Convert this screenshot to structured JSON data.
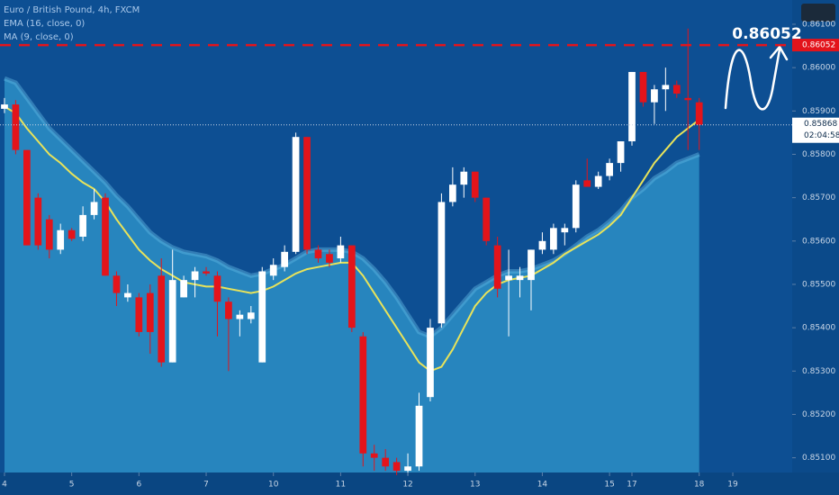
{
  "chart_data": {
    "type": "candlestick",
    "title": "Euro / British Pound, 4h, FXCM",
    "up_color": "#ffffff",
    "down_color": "#e3141b",
    "open": [
      0.85905,
      0.85915,
      0.8581,
      0.857,
      0.8565,
      0.8558,
      0.85625,
      0.8561,
      0.8566,
      0.857,
      0.8552,
      0.8547,
      0.8547,
      0.8548,
      0.8552,
      0.8532,
      0.8547,
      0.8551,
      0.8553,
      0.8552,
      0.8546,
      0.8542,
      0.8542,
      0.8532,
      0.8552,
      0.8554,
      0.85575,
      0.8584,
      0.8558,
      0.8557,
      0.8556,
      0.8559,
      0.8538,
      0.8511,
      0.851,
      0.8509,
      0.8507,
      0.8508,
      0.8524,
      0.8541,
      0.8569,
      0.8573,
      0.8576,
      0.857,
      0.8559,
      0.8551,
      0.8551,
      0.8551,
      0.8558,
      0.8558,
      0.8562,
      0.8563,
      0.8574,
      0.85725,
      0.8575,
      0.8578,
      0.8583,
      0.8599,
      0.8592,
      0.8595,
      0.8596,
      0.8593,
      0.8592
    ],
    "high": [
      0.8593,
      0.85925,
      0.8581,
      0.8571,
      0.8566,
      0.8564,
      0.8563,
      0.8568,
      0.8572,
      0.8571,
      0.8553,
      0.855,
      0.8548,
      0.855,
      0.8556,
      0.8558,
      0.8552,
      0.8554,
      0.8554,
      0.8553,
      0.8547,
      0.8544,
      0.8545,
      0.8554,
      0.8556,
      0.8559,
      0.8585,
      0.8584,
      0.8559,
      0.8558,
      0.8561,
      0.8559,
      0.8539,
      0.8513,
      0.8512,
      0.851,
      0.8511,
      0.8525,
      0.8542,
      0.8571,
      0.8577,
      0.8577,
      0.8576,
      0.857,
      0.8561,
      0.8558,
      0.8554,
      0.8558,
      0.8562,
      0.8564,
      0.8564,
      0.8574,
      0.8579,
      0.8576,
      0.8579,
      0.8583,
      0.8599,
      0.8599,
      0.8596,
      0.86,
      0.8597,
      0.8609,
      0.8593
    ],
    "low": [
      0.85895,
      0.858,
      0.8559,
      0.8558,
      0.8556,
      0.8557,
      0.856,
      0.856,
      0.8565,
      0.8552,
      0.8545,
      0.8546,
      0.8538,
      0.8534,
      0.8531,
      0.8532,
      0.8547,
      0.8547,
      0.8552,
      0.8538,
      0.853,
      0.8538,
      0.8541,
      0.8532,
      0.8551,
      0.8553,
      0.8557,
      0.8557,
      0.8555,
      0.8554,
      0.8555,
      0.8539,
      0.8508,
      0.8507,
      0.8507,
      0.8506,
      0.8506,
      0.8507,
      0.8523,
      0.854,
      0.8568,
      0.857,
      0.8569,
      0.8559,
      0.8547,
      0.8538,
      0.8547,
      0.8544,
      0.8557,
      0.8557,
      0.8559,
      0.8562,
      0.8573,
      0.8572,
      0.8574,
      0.8576,
      0.8582,
      0.8591,
      0.8587,
      0.859,
      0.8593,
      0.8581,
      0.8581
    ],
    "close": [
      0.85915,
      0.8581,
      0.8559,
      0.8559,
      0.8558,
      0.85625,
      0.85605,
      0.8566,
      0.8569,
      0.8552,
      0.8548,
      0.8548,
      0.8539,
      0.8539,
      0.8532,
      0.8551,
      0.8551,
      0.8553,
      0.85525,
      0.8546,
      0.8542,
      0.8543,
      0.85435,
      0.8553,
      0.85545,
      0.85575,
      0.8584,
      0.8558,
      0.8556,
      0.8555,
      0.8559,
      0.854,
      0.8511,
      0.851,
      0.8508,
      0.8507,
      0.8508,
      0.8522,
      0.854,
      0.8569,
      0.8573,
      0.8576,
      0.857,
      0.856,
      0.8549,
      0.8552,
      0.8552,
      0.8558,
      0.856,
      0.8563,
      0.8563,
      0.8573,
      0.85725,
      0.8575,
      0.8578,
      0.8583,
      0.8599,
      0.8592,
      0.8595,
      0.8596,
      0.8594,
      0.85925,
      0.85868
    ],
    "indicators": [
      {
        "name": "EMA (16, close, 0)",
        "style": "line",
        "color": "#e8e35a",
        "values": [
          0.8591,
          0.85895,
          0.8586,
          0.8583,
          0.858,
          0.8578,
          0.85755,
          0.85735,
          0.8572,
          0.8569,
          0.8565,
          0.85615,
          0.8558,
          0.85555,
          0.85535,
          0.8552,
          0.85505,
          0.855,
          0.85495,
          0.85495,
          0.8549,
          0.85485,
          0.8548,
          0.85485,
          0.85495,
          0.8551,
          0.85525,
          0.85535,
          0.8554,
          0.85545,
          0.8555,
          0.8555,
          0.8552,
          0.8548,
          0.8544,
          0.854,
          0.8536,
          0.8532,
          0.853,
          0.8531,
          0.8535,
          0.854,
          0.8545,
          0.8548,
          0.855,
          0.8551,
          0.85515,
          0.8552,
          0.85535,
          0.8555,
          0.8557,
          0.85585,
          0.856,
          0.85615,
          0.85635,
          0.8566,
          0.857,
          0.8574,
          0.8578,
          0.8581,
          0.8584,
          0.8586,
          0.8588
        ]
      },
      {
        "name": "MA (9, close, 0)",
        "style": "area",
        "color": "#2a8bc3",
        "values": [
          0.85975,
          0.85965,
          0.8593,
          0.85895,
          0.8586,
          0.85835,
          0.8581,
          0.85785,
          0.8576,
          0.85735,
          0.85705,
          0.8568,
          0.8565,
          0.8562,
          0.856,
          0.85585,
          0.85575,
          0.8557,
          0.85565,
          0.85555,
          0.8554,
          0.8553,
          0.8552,
          0.85525,
          0.85535,
          0.85545,
          0.8556,
          0.85575,
          0.8558,
          0.8558,
          0.8558,
          0.85575,
          0.8556,
          0.85535,
          0.85505,
          0.8547,
          0.8543,
          0.8539,
          0.8538,
          0.854,
          0.8543,
          0.8546,
          0.8549,
          0.85505,
          0.8552,
          0.8553,
          0.8553,
          0.85535,
          0.85545,
          0.85555,
          0.8557,
          0.8559,
          0.8561,
          0.85625,
          0.85645,
          0.8567,
          0.857,
          0.8572,
          0.85745,
          0.8576,
          0.8578,
          0.8579,
          0.858
        ]
      }
    ],
    "xlim": [
      -0.4,
      70.3
    ],
    "ylim": [
      0.85066,
      0.86156
    ],
    "xticks": [
      {
        "value": 0,
        "label": "4"
      },
      {
        "value": 6,
        "label": "5"
      },
      {
        "value": 12,
        "label": "6"
      },
      {
        "value": 18,
        "label": "7"
      },
      {
        "value": 24,
        "label": "10"
      },
      {
        "value": 30,
        "label": "11"
      },
      {
        "value": 36,
        "label": "12"
      },
      {
        "value": 42,
        "label": "13"
      },
      {
        "value": 48,
        "label": "14"
      },
      {
        "value": 54,
        "label": "15"
      },
      {
        "value": 56,
        "label": "17"
      },
      {
        "value": 62,
        "label": "18"
      },
      {
        "value": 65,
        "label": "19"
      }
    ],
    "yticks": [
      {
        "value": 0.861,
        "label": "0.86100"
      },
      {
        "value": 0.86,
        "label": "0.86000"
      },
      {
        "value": 0.859,
        "label": "0.85900"
      },
      {
        "value": 0.858,
        "label": "0.85800"
      },
      {
        "value": 0.857,
        "label": "0.85700"
      },
      {
        "value": 0.856,
        "label": "0.85600"
      },
      {
        "value": 0.855,
        "label": "0.85500"
      },
      {
        "value": 0.854,
        "label": "0.85400"
      },
      {
        "value": 0.853,
        "label": "0.85300"
      },
      {
        "value": 0.852,
        "label": "0.85200"
      },
      {
        "value": 0.851,
        "label": "0.85100"
      }
    ],
    "target": 0.86052,
    "target_color": "#e3141b",
    "last_price": 0.85868,
    "countdown": "02:04:58"
  }
}
